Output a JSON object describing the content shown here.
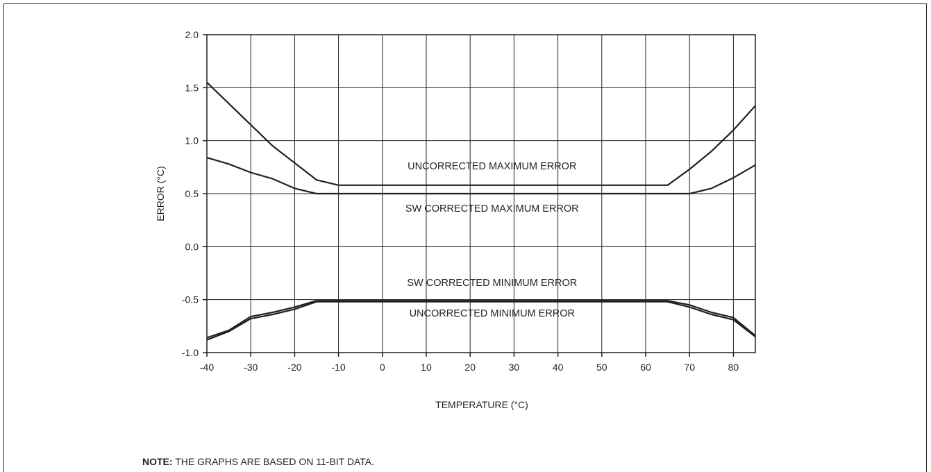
{
  "chart_data": {
    "type": "line",
    "xlabel": "TEMPERATURE (°C)",
    "ylabel": "ERROR (°C)",
    "xlim": [
      -40,
      85
    ],
    "ylim": [
      -1.0,
      2.0
    ],
    "x_ticks": [
      -40,
      -30,
      -20,
      -10,
      0,
      10,
      20,
      30,
      40,
      50,
      60,
      70,
      80
    ],
    "x_tick_labels": [
      "-40",
      "-30",
      "-20",
      "-10",
      "0",
      "10",
      "20",
      "30",
      "40",
      "50",
      "60",
      "70",
      "80"
    ],
    "y_ticks": [
      2.0,
      1.5,
      1.0,
      0.5,
      0.0,
      -0.5,
      -1.0
    ],
    "y_tick_labels": [
      "2.0",
      "1.5",
      "1.0",
      "0.5",
      "0.0",
      "-0.5",
      "-1.0"
    ],
    "grid": true,
    "legend": "none",
    "series": [
      {
        "name": "UNCORRECTED MAXIMUM ERROR",
        "x": [
          -40,
          -35,
          -30,
          -25,
          -20,
          -15,
          -10,
          65,
          70,
          75,
          80,
          85
        ],
        "y": [
          1.55,
          1.35,
          1.15,
          0.95,
          0.79,
          0.63,
          0.58,
          0.58,
          0.73,
          0.9,
          1.1,
          1.33
        ]
      },
      {
        "name": "SW CORRECTED MAXIMUM ERROR",
        "x": [
          -40,
          -35,
          -30,
          -25,
          -20,
          -15,
          70,
          75,
          80,
          85
        ],
        "y": [
          0.84,
          0.78,
          0.7,
          0.64,
          0.55,
          0.5,
          0.5,
          0.55,
          0.65,
          0.77
        ]
      },
      {
        "name": "SW CORRECTED MINIMUM ERROR",
        "x": [
          -40,
          -35,
          -30,
          -25,
          -20,
          -15,
          65,
          70,
          75,
          80,
          85
        ],
        "y": [
          -0.86,
          -0.79,
          -0.66,
          -0.62,
          -0.57,
          -0.51,
          -0.51,
          -0.55,
          -0.62,
          -0.67,
          -0.84
        ]
      },
      {
        "name": "UNCORRECTED MINIMUM ERROR",
        "x": [
          -40,
          -35,
          -30,
          -25,
          -20,
          -15,
          65,
          70,
          75,
          80,
          85
        ],
        "y": [
          -0.88,
          -0.8,
          -0.68,
          -0.64,
          -0.59,
          -0.52,
          -0.52,
          -0.57,
          -0.64,
          -0.69,
          -0.85
        ]
      }
    ],
    "annotations": [
      {
        "text": "UNCORRECTED MAXIMUM ERROR",
        "x": 25,
        "y": 0.73
      },
      {
        "text": "SW CORRECTED MAXIMUM ERROR",
        "x": 25,
        "y": 0.33
      },
      {
        "text": "SW CORRECTED MINIMUM ERROR",
        "x": 25,
        "y": -0.37
      },
      {
        "text": "UNCORRECTED MINIMUM ERROR",
        "x": 25,
        "y": -0.66
      }
    ]
  },
  "note": {
    "label": "NOTE:",
    "text": " THE GRAPHS ARE BASED ON 11-BIT DATA."
  }
}
